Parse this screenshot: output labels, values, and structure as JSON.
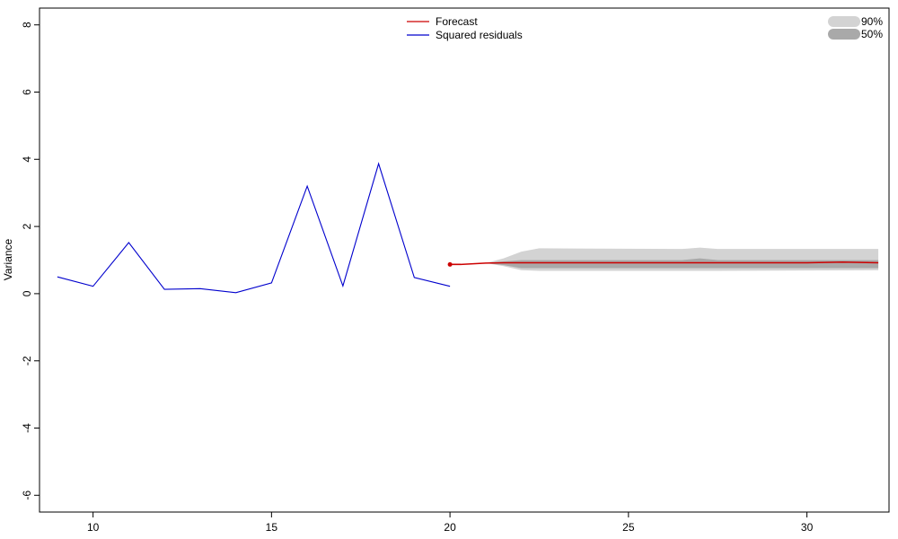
{
  "chart_data": {
    "type": "line",
    "title": "",
    "xlabel": "",
    "ylabel": "Variance",
    "xlim": [
      8.5,
      32.3
    ],
    "ylim": [
      -6.5,
      8.5
    ],
    "xticks": [
      10,
      15,
      20,
      25,
      30
    ],
    "yticks": [
      -6,
      -4,
      -2,
      0,
      2,
      4,
      6,
      8
    ],
    "series": [
      {
        "name": "Squared residuals",
        "color": "#0000CD",
        "x": [
          9,
          10,
          11,
          12,
          13,
          14,
          15,
          16,
          17,
          18,
          19,
          20
        ],
        "y": [
          0.5,
          0.22,
          1.52,
          0.13,
          0.15,
          0.03,
          0.32,
          3.2,
          0.23,
          3.87,
          0.48,
          0.22
        ]
      },
      {
        "name": "Forecast",
        "color": "#CC0000",
        "x": [
          20,
          20.3,
          21,
          21.5,
          22,
          23,
          24,
          25,
          26,
          27,
          28,
          29,
          30,
          31,
          32
        ],
        "y": [
          0.87,
          0.87,
          0.91,
          0.92,
          0.92,
          0.92,
          0.92,
          0.92,
          0.92,
          0.92,
          0.92,
          0.92,
          0.92,
          0.94,
          0.92
        ]
      }
    ],
    "intervals": [
      {
        "name": "90%",
        "color": "#D3D3D3",
        "x": [
          21,
          21.5,
          22,
          22.5,
          26.5,
          27,
          27.5,
          32
        ],
        "lower": [
          0.91,
          0.82,
          0.7,
          0.68,
          0.68,
          0.68,
          0.68,
          0.7
        ],
        "upper": [
          0.91,
          1.05,
          1.25,
          1.35,
          1.33,
          1.37,
          1.33,
          1.33
        ]
      },
      {
        "name": "50%",
        "color": "#A9A9A9",
        "x": [
          21,
          21.5,
          22,
          26.5,
          27,
          27.5,
          32
        ],
        "lower": [
          0.91,
          0.85,
          0.76,
          0.76,
          0.76,
          0.76,
          0.76
        ],
        "upper": [
          0.91,
          0.96,
          1.0,
          1.0,
          1.05,
          1.0,
          1.0
        ]
      }
    ],
    "forecast_start": {
      "x": 20,
      "y": 0.87
    },
    "legend": [
      {
        "label": "Forecast",
        "color": "#CC0000",
        "kind": "line"
      },
      {
        "label": "Squared residuals",
        "color": "#0000CD",
        "kind": "line"
      }
    ],
    "interval_legend": [
      {
        "label": "90%",
        "color": "#D3D3D3"
      },
      {
        "label": "50%",
        "color": "#A9A9A9"
      }
    ],
    "legend_position": "top-center",
    "interval_legend_position": "top-right",
    "grid": false
  }
}
